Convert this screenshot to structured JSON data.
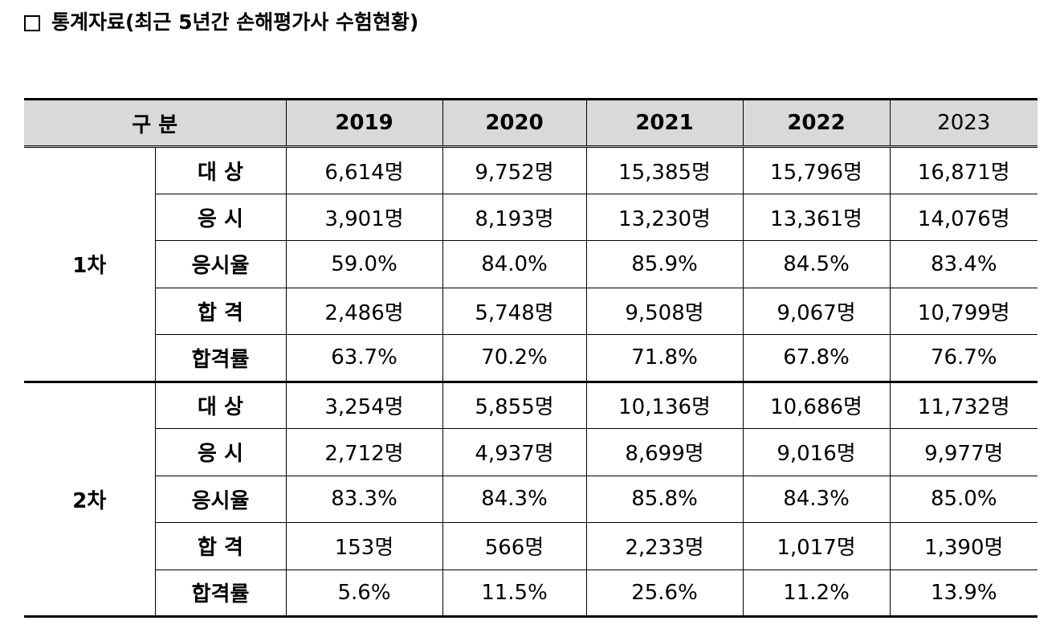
{
  "title": "통계자료(최근 5년간 손해평가사 수험현황)",
  "header": {
    "category": "구 분",
    "years": [
      "2019",
      "2020",
      "2021",
      "2022",
      "2023"
    ]
  },
  "groups": [
    {
      "name": "1차",
      "rows": [
        {
          "label": "대 상",
          "values": [
            "6,614명",
            "9,752명",
            "15,385명",
            "15,796명",
            "16,871명"
          ]
        },
        {
          "label": "응 시",
          "values": [
            "3,901명",
            "8,193명",
            "13,230명",
            "13,361명",
            "14,076명"
          ]
        },
        {
          "label": "응시율",
          "values": [
            "59.0%",
            "84.0%",
            "85.9%",
            "84.5%",
            "83.4%"
          ]
        },
        {
          "label": "합 격",
          "values": [
            "2,486명",
            "5,748명",
            "9,508명",
            "9,067명",
            "10,799명"
          ]
        },
        {
          "label": "합격률",
          "values": [
            "63.7%",
            "70.2%",
            "71.8%",
            "67.8%",
            "76.7%"
          ]
        }
      ]
    },
    {
      "name": "2차",
      "rows": [
        {
          "label": "대 상",
          "values": [
            "3,254명",
            "5,855명",
            "10,136명",
            "10,686명",
            "11,732명"
          ]
        },
        {
          "label": "응 시",
          "values": [
            "2,712명",
            "4,937명",
            "8,699명",
            "9,016명",
            "9,977명"
          ]
        },
        {
          "label": "응시율",
          "values": [
            "83.3%",
            "84.3%",
            "85.8%",
            "84.3%",
            "85.0%"
          ]
        },
        {
          "label": "합 격",
          "values": [
            "153명",
            "566명",
            "2,233명",
            "1,017명",
            "1,390명"
          ]
        },
        {
          "label": "합격률",
          "values": [
            "5.6%",
            "11.5%",
            "25.6%",
            "11.2%",
            "13.9%"
          ]
        }
      ]
    }
  ]
}
